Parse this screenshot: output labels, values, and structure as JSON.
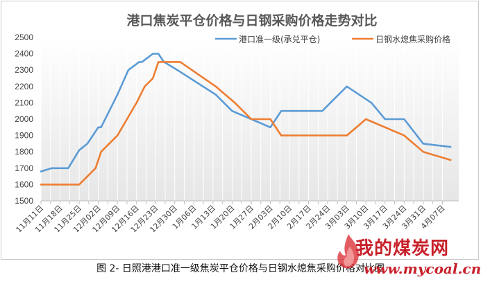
{
  "chart_data": {
    "type": "line",
    "title": "港口焦炭平仓价格与日钢采购价格走势对比",
    "ylim": [
      1500,
      2500
    ],
    "yticks": [
      1500,
      1600,
      1700,
      1800,
      1900,
      2000,
      2100,
      2200,
      2300,
      2400,
      2500
    ],
    "xlabels": [
      "11月11日",
      "11月18日",
      "11月25日",
      "12月02日",
      "12月09日",
      "12月16日",
      "12月23日",
      "12月30日",
      "1月06日",
      "1月13日",
      "1月20日",
      "1月27日",
      "2月03日",
      "2月10日",
      "2月17日",
      "2月24日",
      "3月03日",
      "3月10日",
      "3月17日",
      "3月24日",
      "3月31日",
      "4月07日"
    ],
    "grid": "vertical",
    "legend": "top-right",
    "series": [
      {
        "name": "港口准一级(承兑平仓)",
        "color": "#5b9bd5",
        "points": [
          [
            "11月11日",
            1680
          ],
          [
            "11月15日",
            1700
          ],
          [
            "11月21日",
            1700
          ],
          [
            "11月25日",
            1810
          ],
          [
            "11月28日",
            1850
          ],
          [
            "12月02日",
            1950
          ],
          [
            "12月03日",
            1950
          ],
          [
            "12月09日",
            2150
          ],
          [
            "12月13日",
            2300
          ],
          [
            "12月17日",
            2350
          ],
          [
            "12月18日",
            2350
          ],
          [
            "12月22日",
            2400
          ],
          [
            "12月24日",
            2400
          ],
          [
            "12月26日",
            2350
          ],
          [
            "12月31日",
            2300
          ],
          [
            "1月14日",
            2150
          ],
          [
            "1月20日",
            2050
          ],
          [
            "1月27日",
            2000
          ],
          [
            "2月03日",
            1950
          ],
          [
            "2月07日",
            2050
          ],
          [
            "2月13日",
            2050
          ],
          [
            "2月22日",
            2050
          ],
          [
            "2月28日",
            2150
          ],
          [
            "3月03日",
            2200
          ],
          [
            "3月12日",
            2100
          ],
          [
            "3月17日",
            2000
          ],
          [
            "3月24日",
            2000
          ],
          [
            "3月31日",
            1850
          ],
          [
            "4月10日",
            1830
          ]
        ]
      },
      {
        "name": "日钢水熄焦采购价格",
        "color": "#ed7d31",
        "points": [
          [
            "11月11日",
            1600
          ],
          [
            "11月25日",
            1600
          ],
          [
            "12月01日",
            1700
          ],
          [
            "12月03日",
            1800
          ],
          [
            "12月09日",
            1900
          ],
          [
            "12月16日",
            2100
          ],
          [
            "12月19日",
            2200
          ],
          [
            "12月22日",
            2250
          ],
          [
            "12月24日",
            2350
          ],
          [
            "12月30日",
            2350
          ],
          [
            "1月01日",
            2350
          ],
          [
            "1月14日",
            2200
          ],
          [
            "1月21日",
            2100
          ],
          [
            "1月27日",
            2000
          ],
          [
            "2月03日",
            2000
          ],
          [
            "2月07日",
            1900
          ],
          [
            "2月14日",
            1900
          ],
          [
            "2月24日",
            1900
          ],
          [
            "3月03日",
            1900
          ],
          [
            "3月10日",
            2000
          ],
          [
            "3月24日",
            1900
          ],
          [
            "3月31日",
            1800
          ],
          [
            "4月10日",
            1750
          ]
        ]
      }
    ]
  },
  "caption": "图 2-  日照港港口准一级焦炭平仓价格与日钢水熄焦采购价格对比图",
  "watermark": {
    "text": "我的煤炭网",
    "url": "www.mycoal.cn",
    "color": "#c8202a"
  }
}
